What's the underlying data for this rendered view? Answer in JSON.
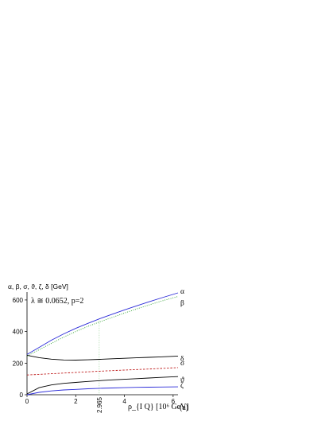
{
  "chart_data": {
    "type": "line",
    "ylabel": "α, β, σ, ϑ, ζ, δ [GeV]",
    "xlabel": "ρ_{I Q} [10⁶ GeV]",
    "annotation": "λ ≅ 0.0652,  p=2",
    "panel_label": "(a)",
    "xlim": [
      0,
      6.2
    ],
    "ylim": [
      0,
      650
    ],
    "x_ticks": [
      "0",
      "2",
      "4",
      "6"
    ],
    "y_ticks": [
      "0",
      "200",
      "400",
      "600"
    ],
    "marker_x": {
      "value": 2.965,
      "label": "2.965"
    },
    "grid": false,
    "legend": "inline labels at right end of each curve",
    "series": [
      {
        "name": "α",
        "color": "#2a2ad8",
        "dash": "solid",
        "x": [
          0,
          0.5,
          1,
          1.5,
          2,
          2.5,
          3,
          3.5,
          4,
          4.5,
          5,
          5.5,
          6.2
        ],
        "values": [
          255,
          300,
          345,
          385,
          420,
          452,
          482,
          510,
          537,
          563,
          588,
          612,
          645
        ]
      },
      {
        "name": "β",
        "color": "#30a030",
        "dash": "dotted",
        "x": [
          0,
          0.5,
          1,
          1.5,
          2,
          2.5,
          3,
          3.5,
          4,
          4.5,
          5,
          5.5,
          6.2
        ],
        "values": [
          245,
          285,
          325,
          365,
          400,
          433,
          462,
          490,
          517,
          543,
          568,
          592,
          622
        ]
      },
      {
        "name": "δ",
        "color": "#000000",
        "dash": "solid",
        "x": [
          0,
          0.5,
          1,
          1.5,
          2,
          2.5,
          3,
          3.5,
          4,
          4.5,
          5,
          5.5,
          6.2
        ],
        "values": [
          250,
          235,
          225,
          220,
          219,
          221,
          224,
          228,
          231,
          234,
          237,
          240,
          245
        ]
      },
      {
        "name": "σ",
        "color": "#c02020",
        "dash": "dashed",
        "x": [
          0,
          1,
          2,
          3,
          4,
          5,
          6.2
        ],
        "values": [
          125,
          133,
          141,
          149,
          156,
          163,
          172
        ]
      },
      {
        "name": "ϑ",
        "color": "#000000",
        "dash": "solid",
        "x": [
          0,
          0.5,
          1,
          1.5,
          2,
          2.5,
          3,
          3.5,
          4,
          4.5,
          5,
          5.5,
          6.2
        ],
        "values": [
          5,
          45,
          62,
          72,
          78,
          84,
          89,
          94,
          98,
          102,
          106,
          110,
          115
        ]
      },
      {
        "name": "ζ",
        "color": "#2a2ad8",
        "dash": "solid",
        "x": [
          0,
          0.5,
          1,
          1.5,
          2,
          2.5,
          3,
          3.5,
          4,
          4.5,
          5,
          5.5,
          6.2
        ],
        "values": [
          0,
          15,
          24,
          30,
          34,
          38,
          41,
          43,
          45,
          47,
          48,
          49,
          50
        ]
      }
    ]
  }
}
